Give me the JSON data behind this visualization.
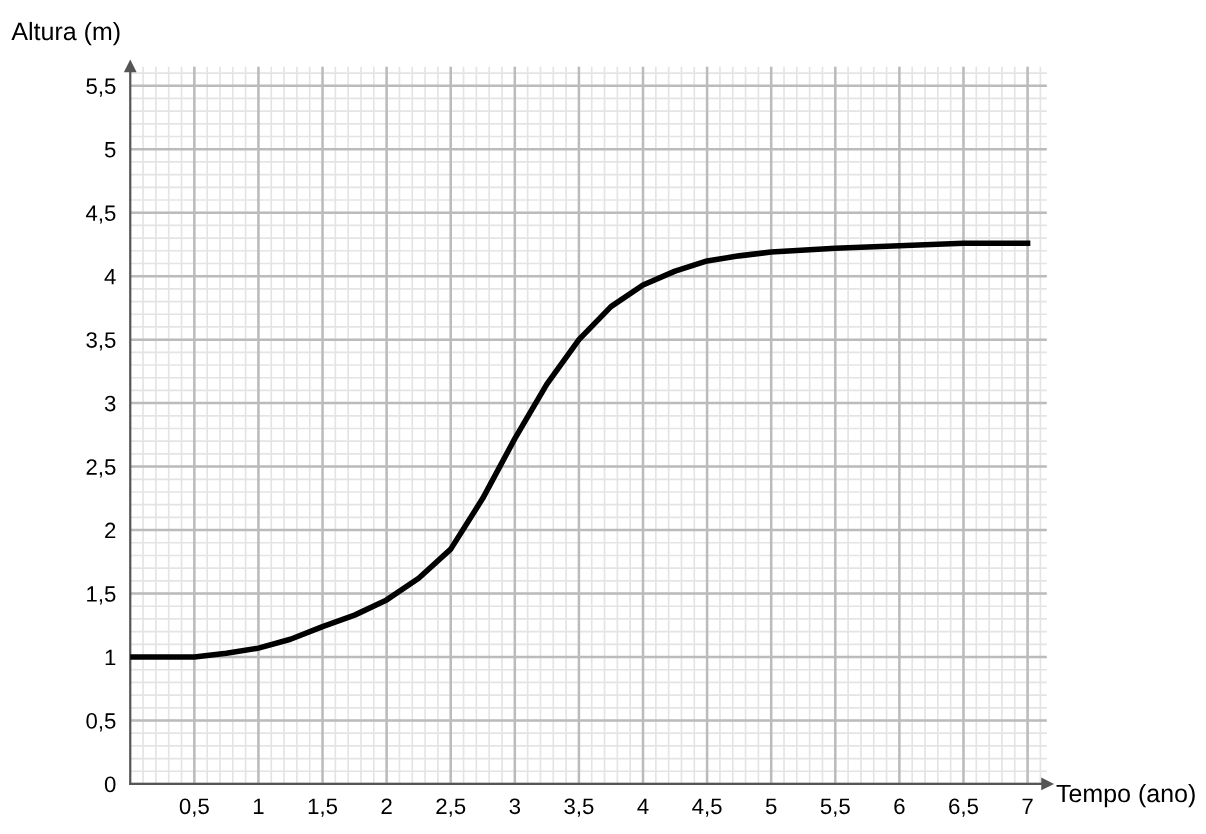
{
  "chart_data": {
    "type": "line",
    "xlabel": "Tempo (ano)",
    "ylabel": "Altura (m)",
    "x": [
      0,
      0.25,
      0.5,
      0.75,
      1,
      1.25,
      1.5,
      1.75,
      2,
      2.25,
      2.5,
      2.75,
      3,
      3.25,
      3.5,
      3.75,
      4,
      4.25,
      4.5,
      4.75,
      5,
      5.5,
      6,
      6.5,
      7
    ],
    "series": [
      {
        "color": "#000000",
        "values": [
          1.0,
          1.0,
          1.0,
          1.03,
          1.07,
          1.14,
          1.24,
          1.33,
          1.45,
          1.62,
          1.85,
          2.25,
          2.72,
          3.15,
          3.5,
          3.76,
          3.93,
          4.04,
          4.12,
          4.16,
          4.19,
          4.22,
          4.24,
          4.26,
          4.26
        ]
      }
    ],
    "xlim": [
      0,
      7.15
    ],
    "ylim": [
      0,
      5.65
    ],
    "xticks": [
      {
        "value": 0.5,
        "label": "0,5"
      },
      1,
      {
        "value": 1.5,
        "label": "1,5"
      },
      2,
      {
        "value": 2.5,
        "label": "2,5"
      },
      3,
      {
        "value": 3.5,
        "label": "3,5"
      },
      4,
      {
        "value": 4.5,
        "label": "4,5"
      },
      5,
      {
        "value": 5.5,
        "label": "5,5"
      },
      6,
      {
        "value": 6.5,
        "label": "6,5"
      },
      7
    ],
    "yticks": [
      0,
      {
        "value": 0.5,
        "label": "0,5"
      },
      1,
      {
        "value": 1.5,
        "label": "1,5"
      },
      2,
      {
        "value": 2.5,
        "label": "2,5"
      },
      3,
      {
        "value": 3.5,
        "label": "3,5"
      },
      4,
      {
        "value": 4.5,
        "label": "4,5"
      },
      5,
      {
        "value": 5.5,
        "label": "5,5"
      }
    ],
    "grid": true,
    "marker": "none",
    "line_style": "solid",
    "legend": false
  }
}
